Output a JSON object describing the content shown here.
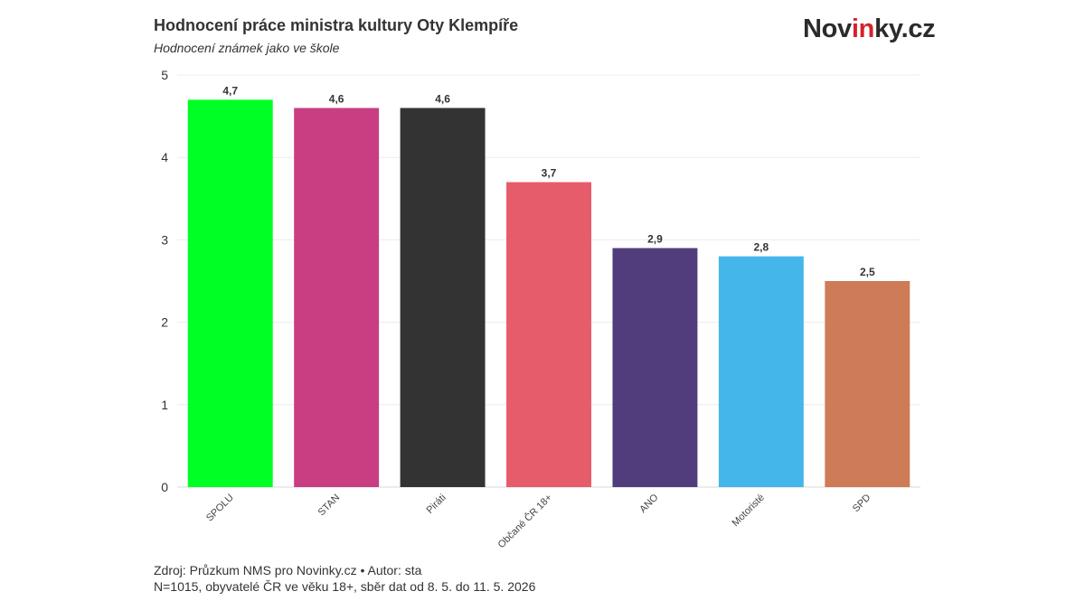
{
  "header": {
    "title": "Hodnocení práce ministra kultury Oty Klempíře",
    "subtitle": "Hodnocení známek jako ve škole",
    "brand": {
      "part1": "Nov",
      "part2": "in",
      "part3": "ky.cz",
      "accent_color": "#d2232a"
    }
  },
  "chart_data": {
    "type": "bar",
    "title": "Hodnocení práce ministra kultury Oty Klempíře",
    "subtitle": "Hodnocení známek jako ve škole",
    "xlabel": "",
    "ylabel": "",
    "ylim": [
      0,
      5
    ],
    "yticks": [
      0,
      1,
      2,
      3,
      4,
      5
    ],
    "grid": true,
    "categories": [
      "SPOLU",
      "STAN",
      "Piráti",
      "Občané ČR 18+",
      "ANO",
      "Motoristé",
      "SPD"
    ],
    "values": [
      4.7,
      4.6,
      4.6,
      3.7,
      2.9,
      2.8,
      2.5
    ],
    "value_labels": [
      "4,7",
      "4,6",
      "4,6",
      "3,7",
      "2,9",
      "2,8",
      "2,5"
    ],
    "colors": [
      "#00ff25",
      "#c93e83",
      "#333333",
      "#e75c6a",
      "#523d7c",
      "#45b6e9",
      "#cd7c57"
    ]
  },
  "footer": {
    "source": "Zdroj: Průzkum NMS pro Novinky.cz • Autor: sta",
    "note": "N=1015, obyvatelé ČR ve věku 18+, sběr dat od 8. 5. do 11. 5. 2026"
  }
}
